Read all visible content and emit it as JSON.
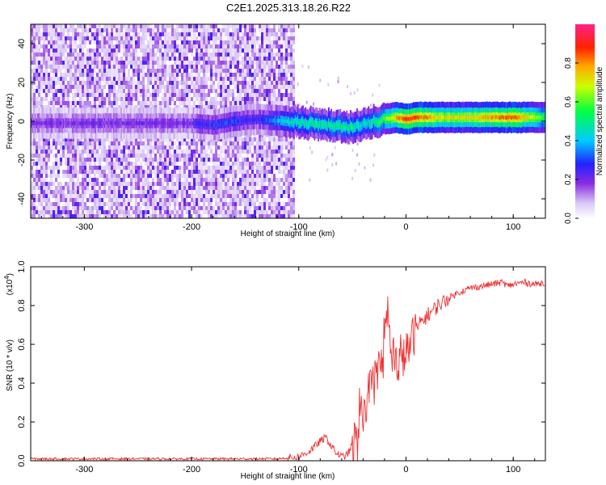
{
  "title": "C2E1.2025.313.18.26.R22",
  "chart_data": [
    {
      "type": "heatmap",
      "id": "spectrogram",
      "xlabel": "Height of straight line (km)",
      "ylabel": "Frequency (Hz)",
      "xlim": [
        -350,
        130
      ],
      "ylim": [
        -50,
        50
      ],
      "xticks": [
        -300,
        -200,
        -100,
        0,
        100
      ],
      "xtick_labels": [
        "-300",
        "-200",
        "-100",
        "0",
        "100"
      ],
      "yticks": [
        -40,
        -20,
        0,
        20,
        40
      ],
      "ytick_labels": [
        "-40",
        "-20",
        "0",
        "20",
        "40"
      ],
      "noise_region_x": [
        -350,
        -105
      ],
      "signal_trace": {
        "x": [
          -200,
          -180,
          -160,
          -140,
          -110,
          -90,
          -70,
          -50,
          -40,
          -30,
          -20,
          -10,
          0,
          10,
          30,
          60,
          80,
          100,
          130
        ],
        "y": [
          -1,
          -2,
          0,
          1,
          0,
          -1,
          -2,
          -3,
          -1,
          0,
          1,
          2,
          1,
          2,
          2,
          2,
          2,
          2,
          2
        ],
        "amp": [
          0.25,
          0.28,
          0.3,
          0.25,
          0.45,
          0.5,
          0.5,
          0.5,
          0.45,
          0.5,
          0.6,
          0.75,
          0.9,
          0.85,
          0.72,
          0.72,
          0.8,
          0.85,
          0.55
        ]
      },
      "colorbar": {
        "label": "Normalized spectral amplitude",
        "range": [
          0,
          1
        ],
        "ticks": [
          0.0,
          0.2,
          0.4,
          0.6,
          0.8
        ],
        "tick_labels": [
          "0.0",
          "0.2",
          "0.4",
          "0.6",
          "0.8"
        ]
      }
    },
    {
      "type": "line",
      "id": "snr",
      "xlabel": "Height of straight line (km)",
      "ylabel": "SNR (10 * v/v)",
      "scale_label": "(x10",
      "scale_exponent": "4",
      "xlim": [
        -350,
        130
      ],
      "ylim": [
        0,
        1.0
      ],
      "xticks": [
        -300,
        -200,
        -100,
        0,
        100
      ],
      "xtick_labels": [
        "-300",
        "-200",
        "-100",
        "0",
        "100"
      ],
      "yticks": [
        0.0,
        0.2,
        0.4,
        0.6,
        0.8,
        1.0
      ],
      "ytick_labels": [
        "0.0",
        "0.2",
        "0.4",
        "0.6",
        "0.8",
        "1.0"
      ],
      "color": "#f03030",
      "series": [
        {
          "name": "SNR",
          "x": [
            -350,
            -300,
            -250,
            -200,
            -150,
            -120,
            -100,
            -90,
            -80,
            -75,
            -70,
            -65,
            -60,
            -55,
            -50,
            -45,
            -40,
            -35,
            -30,
            -25,
            -20,
            -17,
            -15,
            -12,
            -10,
            -5,
            0,
            5,
            10,
            15,
            20,
            30,
            40,
            50,
            60,
            70,
            80,
            90,
            95,
            100,
            110,
            120,
            130
          ],
          "y": [
            0.01,
            0.01,
            0.01,
            0.01,
            0.01,
            0.01,
            0.02,
            0.05,
            0.1,
            0.12,
            0.08,
            0.04,
            0.02,
            0.03,
            0.08,
            0.15,
            0.25,
            0.35,
            0.42,
            0.5,
            0.62,
            0.8,
            0.6,
            0.55,
            0.5,
            0.52,
            0.55,
            0.62,
            0.68,
            0.72,
            0.75,
            0.8,
            0.84,
            0.87,
            0.89,
            0.9,
            0.91,
            0.92,
            0.9,
            0.91,
            0.92,
            0.91,
            0.92
          ]
        }
      ]
    }
  ]
}
